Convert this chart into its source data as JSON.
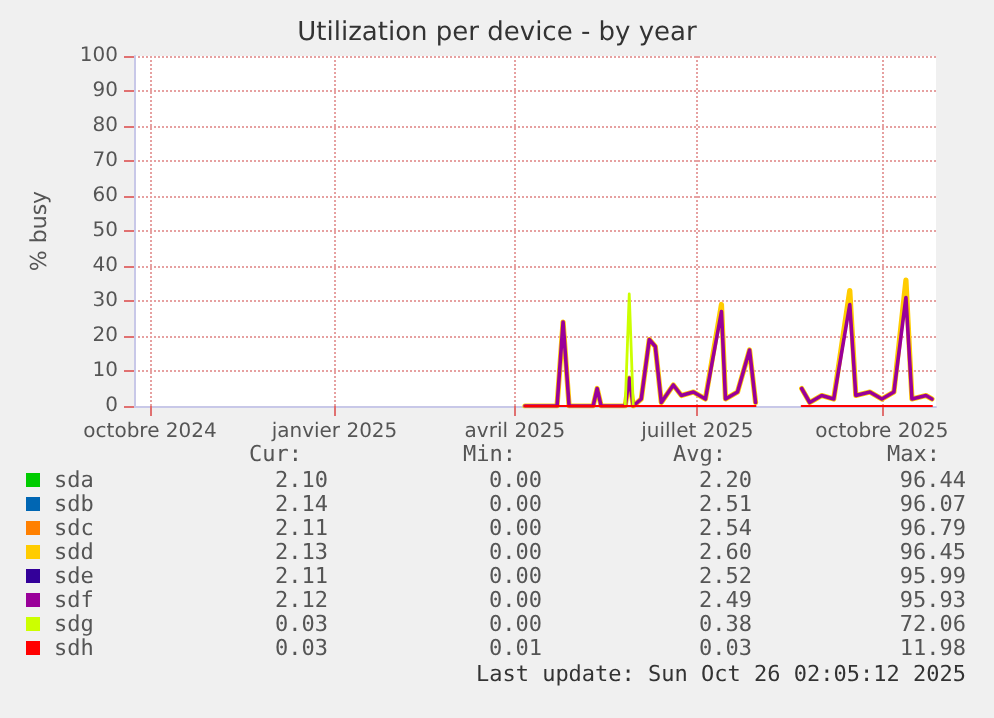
{
  "chart_data": {
    "type": "line",
    "title": "Utilization per device - by year",
    "ylabel": "% busy",
    "x": [
      "2025-04-06",
      "2025-04-22",
      "2025-04-25",
      "2025-04-28",
      "2025-05-10",
      "2025-05-12",
      "2025-05-14",
      "2025-05-26",
      "2025-05-28",
      "2025-05-30",
      "2025-06-03",
      "2025-06-07",
      "2025-06-10",
      "2025-06-13",
      "2025-06-19",
      "2025-06-23",
      "2025-06-29",
      "2025-07-05",
      "2025-07-13",
      "2025-07-15",
      "2025-07-21",
      "2025-07-27",
      "2025-07-30",
      "2025-08-10",
      "2025-08-22",
      "2025-08-26",
      "2025-09-01",
      "2025-09-07",
      "2025-09-15",
      "2025-09-18",
      "2025-09-25",
      "2025-10-01",
      "2025-10-07",
      "2025-10-13",
      "2025-10-16",
      "2025-10-23",
      "2025-10-26"
    ],
    "series": [
      {
        "name": "sda",
        "color": "#00cc00",
        "values": [
          null,
          null,
          null,
          null,
          null,
          null,
          null,
          null,
          null,
          null,
          null,
          null,
          null,
          null,
          null,
          null,
          null,
          null,
          null,
          null,
          null,
          null,
          null,
          null,
          null,
          null,
          null,
          null,
          null,
          null,
          null,
          null,
          null,
          null,
          null,
          null,
          null
        ]
      },
      {
        "name": "sdb",
        "color": "#0066b3",
        "values": [
          null,
          null,
          null,
          null,
          null,
          null,
          null,
          null,
          null,
          null,
          null,
          null,
          null,
          null,
          null,
          null,
          null,
          null,
          null,
          null,
          null,
          null,
          null,
          null,
          null,
          null,
          null,
          null,
          null,
          null,
          null,
          null,
          null,
          null,
          null,
          null,
          null
        ]
      },
      {
        "name": "sdc",
        "color": "#ff8000",
        "values": [
          null,
          null,
          null,
          null,
          null,
          null,
          null,
          null,
          null,
          null,
          null,
          null,
          null,
          null,
          null,
          null,
          null,
          null,
          null,
          null,
          null,
          null,
          null,
          null,
          null,
          null,
          null,
          null,
          null,
          null,
          null,
          null,
          null,
          null,
          null,
          null,
          null
        ]
      },
      {
        "name": "sdd",
        "color": "#ffcc00",
        "values": [
          0,
          0,
          24,
          0,
          0,
          5,
          0,
          0,
          8,
          0,
          2,
          19,
          17,
          1,
          6,
          3,
          4,
          2,
          29,
          2,
          4,
          16,
          1,
          null,
          5,
          1,
          3,
          2,
          33,
          3,
          4,
          2,
          4,
          36,
          2,
          3,
          2
        ]
      },
      {
        "name": "sde",
        "color": "#330099",
        "values": [
          null,
          null,
          null,
          null,
          null,
          null,
          null,
          null,
          null,
          null,
          null,
          null,
          null,
          null,
          null,
          null,
          null,
          null,
          null,
          null,
          null,
          null,
          null,
          null,
          null,
          null,
          null,
          null,
          null,
          null,
          null,
          null,
          null,
          null,
          null,
          null,
          null
        ]
      },
      {
        "name": "sdf",
        "color": "#990099",
        "values": [
          0,
          0,
          24,
          0,
          0,
          5,
          0,
          0,
          8,
          0,
          2,
          19,
          17,
          1,
          6,
          3,
          4,
          2,
          27,
          2,
          4,
          16,
          1,
          null,
          5,
          1,
          3,
          2,
          29,
          3,
          4,
          2,
          4,
          31,
          2,
          3,
          2
        ]
      },
      {
        "name": "sdg",
        "color": "#ccff00",
        "values": [
          null,
          null,
          null,
          null,
          null,
          null,
          null,
          0,
          32,
          0,
          null,
          null,
          null,
          null,
          null,
          null,
          null,
          null,
          null,
          null,
          null,
          null,
          null,
          null,
          null,
          null,
          null,
          null,
          null,
          null,
          null,
          null,
          null,
          null,
          null,
          null,
          null
        ]
      },
      {
        "name": "sdh",
        "color": "#ff0000",
        "values": [
          0,
          0,
          0,
          0,
          0,
          0,
          0,
          0,
          0,
          0,
          0,
          0,
          0,
          0,
          0,
          0,
          0,
          0,
          0,
          0,
          0,
          0,
          0,
          null,
          0,
          0,
          0,
          0,
          0,
          0,
          0,
          0,
          0,
          0,
          0,
          0,
          0
        ]
      }
    ],
    "xlim": [
      "2024-09-23",
      "2025-10-28"
    ],
    "xticks": [
      {
        "value": "2024-10-01",
        "label": "octobre 2024"
      },
      {
        "value": "2025-01-01",
        "label": "janvier 2025"
      },
      {
        "value": "2025-04-01",
        "label": "avril 2025"
      },
      {
        "value": "2025-07-01",
        "label": "juillet 2025"
      },
      {
        "value": "2025-10-01",
        "label": "octobre 2025"
      }
    ],
    "ylim": [
      0,
      100
    ],
    "yticks": [
      0,
      10,
      20,
      30,
      40,
      50,
      60,
      70,
      80,
      90,
      100
    ],
    "grid": true,
    "legend": "bottom left",
    "marker": "none",
    "line_style": "solid",
    "annotations": [
      "Cur:",
      "Min:",
      "Avg:",
      "Max:",
      "2.10",
      "0.00",
      "2.20",
      "96.44",
      "2.14",
      "0.00",
      "2.51",
      "96.07",
      "2.11",
      "0.00",
      "2.54",
      "96.79",
      "2.13",
      "0.00",
      "2.60",
      "96.45",
      "2.11",
      "0.00",
      "2.52",
      "95.99",
      "2.12",
      "0.00",
      "2.49",
      "95.93",
      "0.03",
      "0.00",
      "0.38",
      "72.06",
      "0.03",
      "0.01",
      "0.03",
      "11.98",
      "Last update: Sun Oct 26 02:05:12 2025"
    ]
  }
}
